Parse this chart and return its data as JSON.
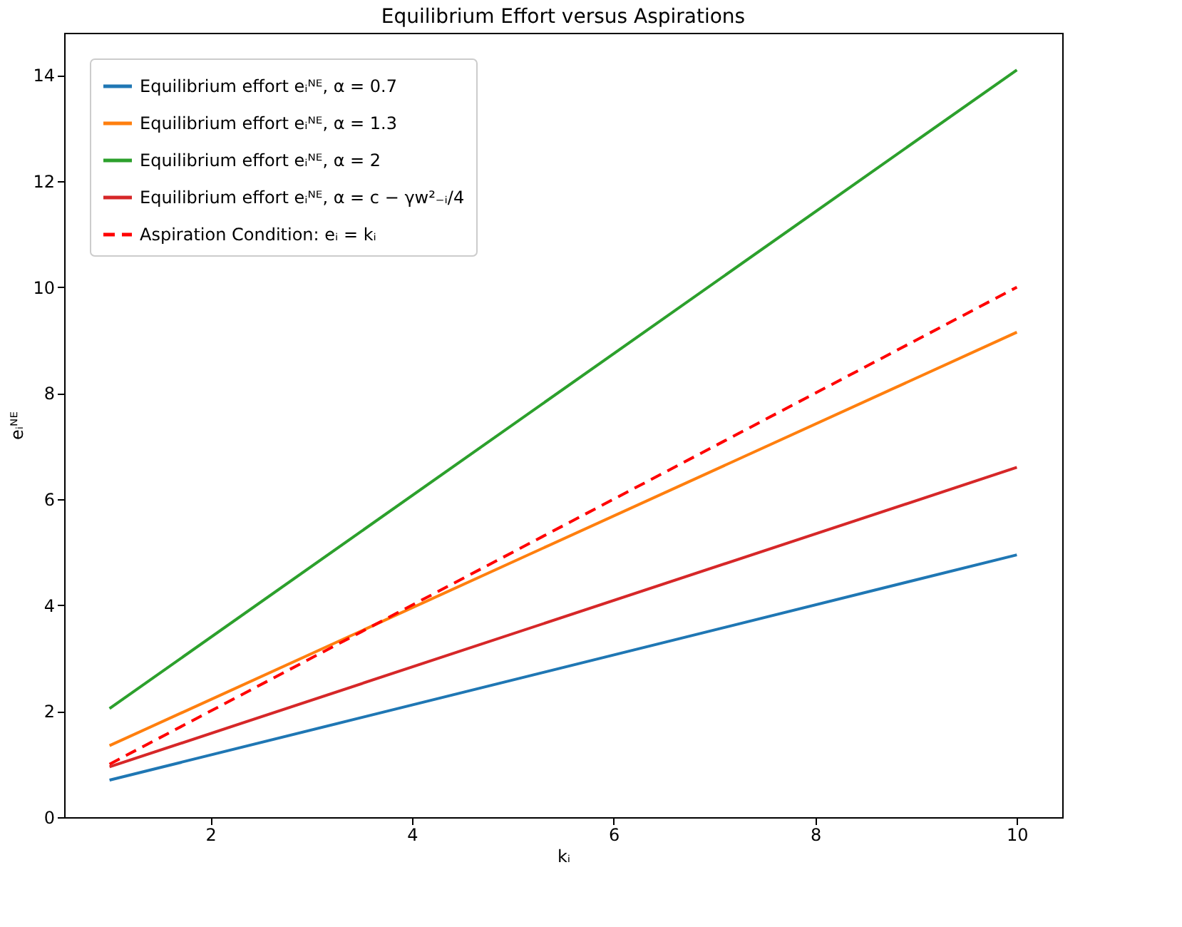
{
  "chart_data": {
    "type": "line",
    "title": "Equilibrium Effort versus Aspirations",
    "xlabel": "kᵢ",
    "ylabel": "eᵢᴺᴱ",
    "x": [
      1,
      10
    ],
    "series": [
      {
        "name": "Equilibrium effort eᵢᴺᴱ, α = 0.7",
        "color": "#1f77b4",
        "values": [
          0.7,
          4.95
        ],
        "line_style": "solid"
      },
      {
        "name": "Equilibrium effort eᵢᴺᴱ, α = 1.3",
        "color": "#ff7f0e",
        "values": [
          1.35,
          9.15
        ],
        "line_style": "solid"
      },
      {
        "name": "Equilibrium effort eᵢᴺᴱ, α = 2",
        "color": "#2ca02c",
        "values": [
          2.05,
          14.1
        ],
        "line_style": "solid"
      },
      {
        "name": "Equilibrium effort eᵢᴺᴱ, α = c − γw²₋ᵢ/4",
        "color": "#d62728",
        "values": [
          0.95,
          6.6
        ],
        "line_style": "solid"
      },
      {
        "name": "Aspiration Condition: eᵢ = kᵢ",
        "color": "#ff0000",
        "values": [
          1,
          10
        ],
        "line_style": "dashed"
      }
    ],
    "xlim": [
      0.55,
      10.45
    ],
    "ylim": [
      0,
      14.8
    ],
    "xticks": [
      2,
      4,
      6,
      8,
      10
    ],
    "yticks": [
      0,
      2,
      4,
      6,
      8,
      10,
      12,
      14
    ],
    "grid": false,
    "legend": "top left",
    "marker": "none"
  }
}
